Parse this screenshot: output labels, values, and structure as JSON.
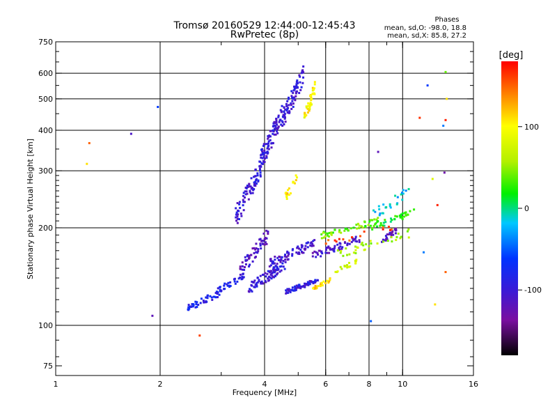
{
  "header": {
    "title": "Tromsø 20160529 12:44:00-12:45:43",
    "subtitle": "RwPretec (8p)",
    "stats_title": "Phases",
    "stats_o": "mean, sd,O: -98.0, 18.8",
    "stats_x": "mean, sd,X:  85.8, 27.2"
  },
  "chart_data": {
    "type": "scatter",
    "xlabel": "Frequency [MHz]",
    "ylabel": "Stationary phase Virtual Height [km]",
    "xscale": "log",
    "yscale": "log",
    "xlim": [
      1,
      16
    ],
    "ylim": [
      70,
      750
    ],
    "x_ticks": [
      1,
      2,
      4,
      6,
      8,
      10,
      16
    ],
    "y_ticks": [
      75,
      100,
      200,
      300,
      400,
      500,
      600,
      750
    ],
    "x_gridlines": [
      2,
      4,
      6,
      8,
      10
    ],
    "y_gridlines": [
      100,
      200,
      300,
      400,
      500,
      600
    ],
    "colorbar": {
      "label": "[deg]",
      "range": [
        -180,
        180
      ],
      "ticks": [
        100,
        0,
        -100
      ]
    },
    "series": [
      {
        "x_range": [
          3.6,
          4.6
        ],
        "y_range": [
          125,
          160
        ],
        "phase": -100,
        "n": 90
      },
      {
        "x_range": [
          4.6,
          5.7
        ],
        "y_range": [
          125,
          140
        ],
        "phase": -95,
        "n": 70
      },
      {
        "x_range": [
          3.3,
          3.9
        ],
        "y_range": [
          200,
          330
        ],
        "phase": -100,
        "n": 80
      },
      {
        "x_range": [
          3.9,
          4.5
        ],
        "y_range": [
          300,
          480
        ],
        "phase": -100,
        "n": 90
      },
      {
        "x_range": [
          4.5,
          5.2
        ],
        "y_range": [
          400,
          640
        ],
        "phase": -100,
        "n": 80
      },
      {
        "x_range": [
          3.4,
          4.1
        ],
        "y_range": [
          140,
          200
        ],
        "phase": -110,
        "n": 60
      },
      {
        "x_range": [
          4.1,
          5.6
        ],
        "y_range": [
          150,
          185
        ],
        "phase": -105,
        "n": 70
      },
      {
        "x_range": [
          5.5,
          7.6
        ],
        "y_range": [
          160,
          190
        ],
        "phase": -110,
        "n": 55
      },
      {
        "x_range": [
          8.5,
          9.6
        ],
        "y_range": [
          175,
          200
        ],
        "phase": -115,
        "n": 25
      },
      {
        "x_range": [
          2.4,
          3.0
        ],
        "y_range": [
          110,
          130
        ],
        "phase": -80,
        "n": 45
      },
      {
        "x_range": [
          2.9,
          3.5
        ],
        "y_range": [
          125,
          145
        ],
        "phase": -85,
        "n": 35
      },
      {
        "x_range": [
          5.2,
          5.6
        ],
        "y_range": [
          410,
          570
        ],
        "phase": 100,
        "n": 40
      },
      {
        "x_range": [
          4.6,
          5.0
        ],
        "y_range": [
          240,
          300
        ],
        "phase": 105,
        "n": 20
      },
      {
        "x_range": [
          5.5,
          6.2
        ],
        "y_range": [
          128,
          140
        ],
        "phase": 110,
        "n": 25
      },
      {
        "x_range": [
          6.4,
          7.4
        ],
        "y_range": [
          145,
          160
        ],
        "phase": 80,
        "n": 20
      },
      {
        "x_range": [
          5.8,
          8.5
        ],
        "y_range": [
          185,
          215
        ],
        "phase": 40,
        "n": 50
      },
      {
        "x_range": [
          8.0,
          10.8
        ],
        "y_range": [
          195,
          230
        ],
        "phase": 20,
        "n": 40
      },
      {
        "x_range": [
          6.5,
          10.5
        ],
        "y_range": [
          160,
          200
        ],
        "phase": 60,
        "n": 35
      },
      {
        "x_range": [
          8.2,
          10.5
        ],
        "y_range": [
          210,
          270
        ],
        "phase": -20,
        "n": 25
      },
      {
        "x_range": [
          6.0,
          9.5
        ],
        "y_range": [
          175,
          205
        ],
        "phase": 160,
        "n": 15
      }
    ],
    "points": [
      {
        "x": 1.25,
        "y": 365,
        "phase": 150
      },
      {
        "x": 1.23,
        "y": 315,
        "phase": 110
      },
      {
        "x": 1.65,
        "y": 390,
        "phase": -110
      },
      {
        "x": 1.97,
        "y": 472,
        "phase": -60
      },
      {
        "x": 1.9,
        "y": 107,
        "phase": -120
      },
      {
        "x": 2.6,
        "y": 93,
        "phase": 160
      },
      {
        "x": 11.2,
        "y": 437,
        "phase": 165
      },
      {
        "x": 13.3,
        "y": 605,
        "phase": 40
      },
      {
        "x": 13.4,
        "y": 500,
        "phase": 110
      },
      {
        "x": 13.3,
        "y": 430,
        "phase": 170
      },
      {
        "x": 13.1,
        "y": 413,
        "phase": -40
      },
      {
        "x": 11.8,
        "y": 550,
        "phase": -60
      },
      {
        "x": 13.2,
        "y": 296,
        "phase": -130
      },
      {
        "x": 12.2,
        "y": 283,
        "phase": 80
      },
      {
        "x": 12.6,
        "y": 235,
        "phase": 170
      },
      {
        "x": 8.1,
        "y": 103,
        "phase": -50
      },
      {
        "x": 8.5,
        "y": 343,
        "phase": -120
      },
      {
        "x": 12.4,
        "y": 116,
        "phase": 110
      },
      {
        "x": 13.3,
        "y": 146,
        "phase": 150
      },
      {
        "x": 11.5,
        "y": 168,
        "phase": -40
      }
    ]
  }
}
